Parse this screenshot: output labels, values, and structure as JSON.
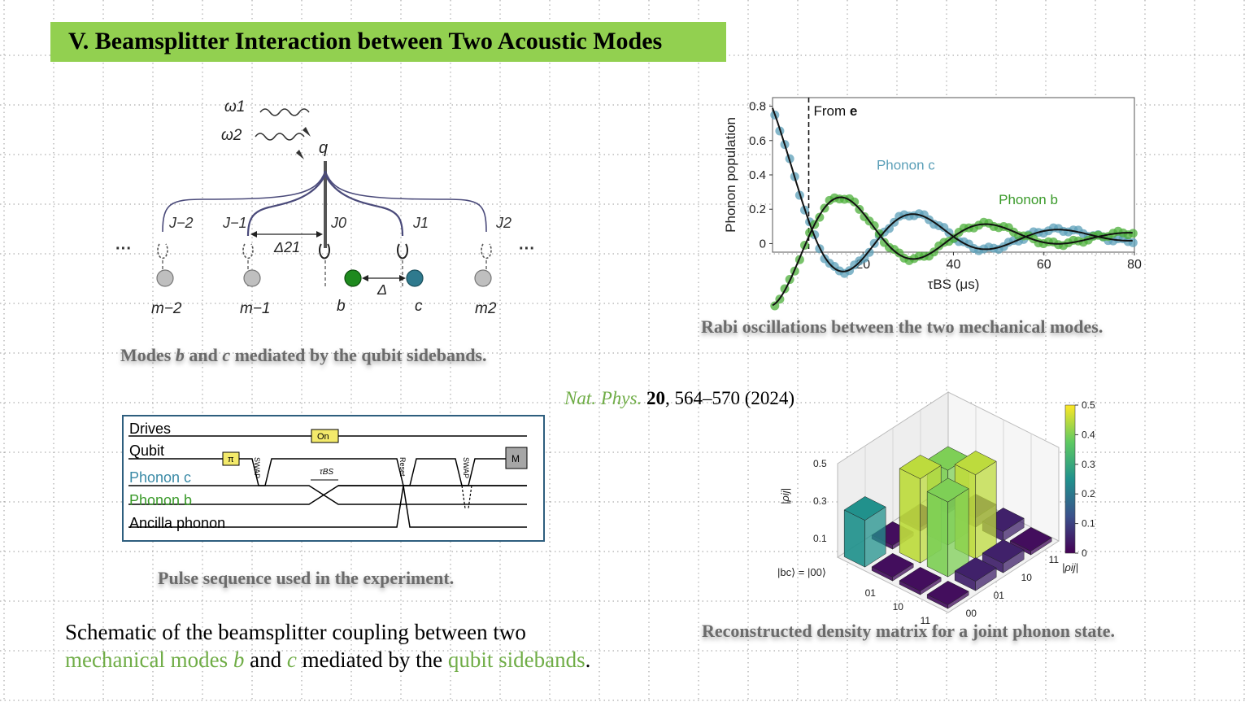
{
  "slide": {
    "title": "V. Beamsplitter Interaction between Two Acoustic Modes",
    "captions": {
      "modes": [
        "Modes ",
        "b",
        " and ",
        "c",
        " mediated by the qubit sidebands."
      ],
      "rabi": "Rabi oscillations between the two mechanical modes.",
      "pulse": "Pulse sequence used in the experiment.",
      "density": "Reconstructed density matrix for a joint phonon state."
    },
    "citation": {
      "journal": "Nat. Phys.",
      "volume": "20",
      "rest": ", 564–570 (2024)"
    },
    "schematic_text": {
      "line1": "Schematic of the beamsplitter coupling between two",
      "line2_green1": "mechanical modes ",
      "b": "b",
      "and": " and ",
      "c": "c",
      "mid": " mediated by the ",
      "green2": "qubit sidebands",
      "end": "."
    }
  },
  "coupling_diagram": {
    "drives": [
      "ω1",
      "ω2"
    ],
    "qubit_label": "q",
    "couplings": [
      "J−2",
      "J−1",
      "J0",
      "J1",
      "J2"
    ],
    "detuning_21": "Δ21",
    "detuning": "Δ",
    "modes": [
      "m−2",
      "m−1",
      "b",
      "c",
      "m2"
    ],
    "ellipsis": "···",
    "colors": {
      "b": "#1e8a1e",
      "c": "#2f7a8e",
      "gray": "#bfbfbf",
      "line": "#4a4a7a"
    }
  },
  "pulse_sequence": {
    "rows": [
      {
        "label": "Drives",
        "color": "#000000"
      },
      {
        "label": "Qubit",
        "color": "#000000"
      },
      {
        "label": "Phonon c",
        "color": "#3a8aa6"
      },
      {
        "label": "Phonon b",
        "color": "#3a9a2a"
      },
      {
        "label": "Ancilla phonon",
        "color": "#000000"
      }
    ],
    "boxes": {
      "on": "On",
      "pi": "π",
      "measure": "M"
    },
    "rotated": {
      "swap1": "SWAP",
      "reset": "Reset",
      "swap2": "SWAP"
    },
    "tau": "τBS"
  },
  "chart_data": [
    {
      "type": "scatter",
      "title": "",
      "xlabel": "τBS (μs)",
      "ylabel": "Phonon population",
      "xlim": [
        0,
        80
      ],
      "ylim": [
        -0.05,
        0.85
      ],
      "xticks": [
        "20",
        "40",
        "60",
        "80"
      ],
      "yticks": [
        "0",
        "0.2",
        "0.4",
        "0.6",
        "0.8"
      ],
      "annotation": {
        "text": "From ",
        "bold": "e",
        "x": 8
      },
      "series": [
        {
          "name": "Phonon c",
          "color": "#5b9fb8",
          "amp": 0.4,
          "offset": 0.04,
          "decay": 28,
          "period": 32,
          "phase": 0,
          "x": [
            0,
            80
          ]
        },
        {
          "name": "Phonon b",
          "color": "#4caf3a",
          "amp": 0.4,
          "offset": 0.04,
          "decay": 28,
          "period": 32,
          "phase": 3.14159,
          "x": [
            0,
            80
          ]
        }
      ]
    },
    {
      "type": "bar3d",
      "title": "",
      "zlabel": "|ρij|",
      "zticks": [
        "0.1",
        "0.3",
        "0.5"
      ],
      "row_labels": [
        "01",
        "10",
        "11"
      ],
      "col_labels": [
        "00",
        "01",
        "10",
        "11"
      ],
      "corner_label": "|bc⟩ = |00⟩",
      "colorbar": {
        "label": "|ρij|",
        "ticks": [
          "0",
          "0.1",
          "0.2",
          "0.3",
          "0.4",
          "0.5"
        ],
        "range": [
          0,
          0.5
        ]
      },
      "values": [
        [
          0.25,
          0.02,
          0.02,
          0.02
        ],
        [
          0.02,
          0.45,
          0.4,
          0.05
        ],
        [
          0.02,
          0.4,
          0.45,
          0.05
        ],
        [
          0.02,
          0.05,
          0.05,
          0.02
        ]
      ]
    }
  ]
}
